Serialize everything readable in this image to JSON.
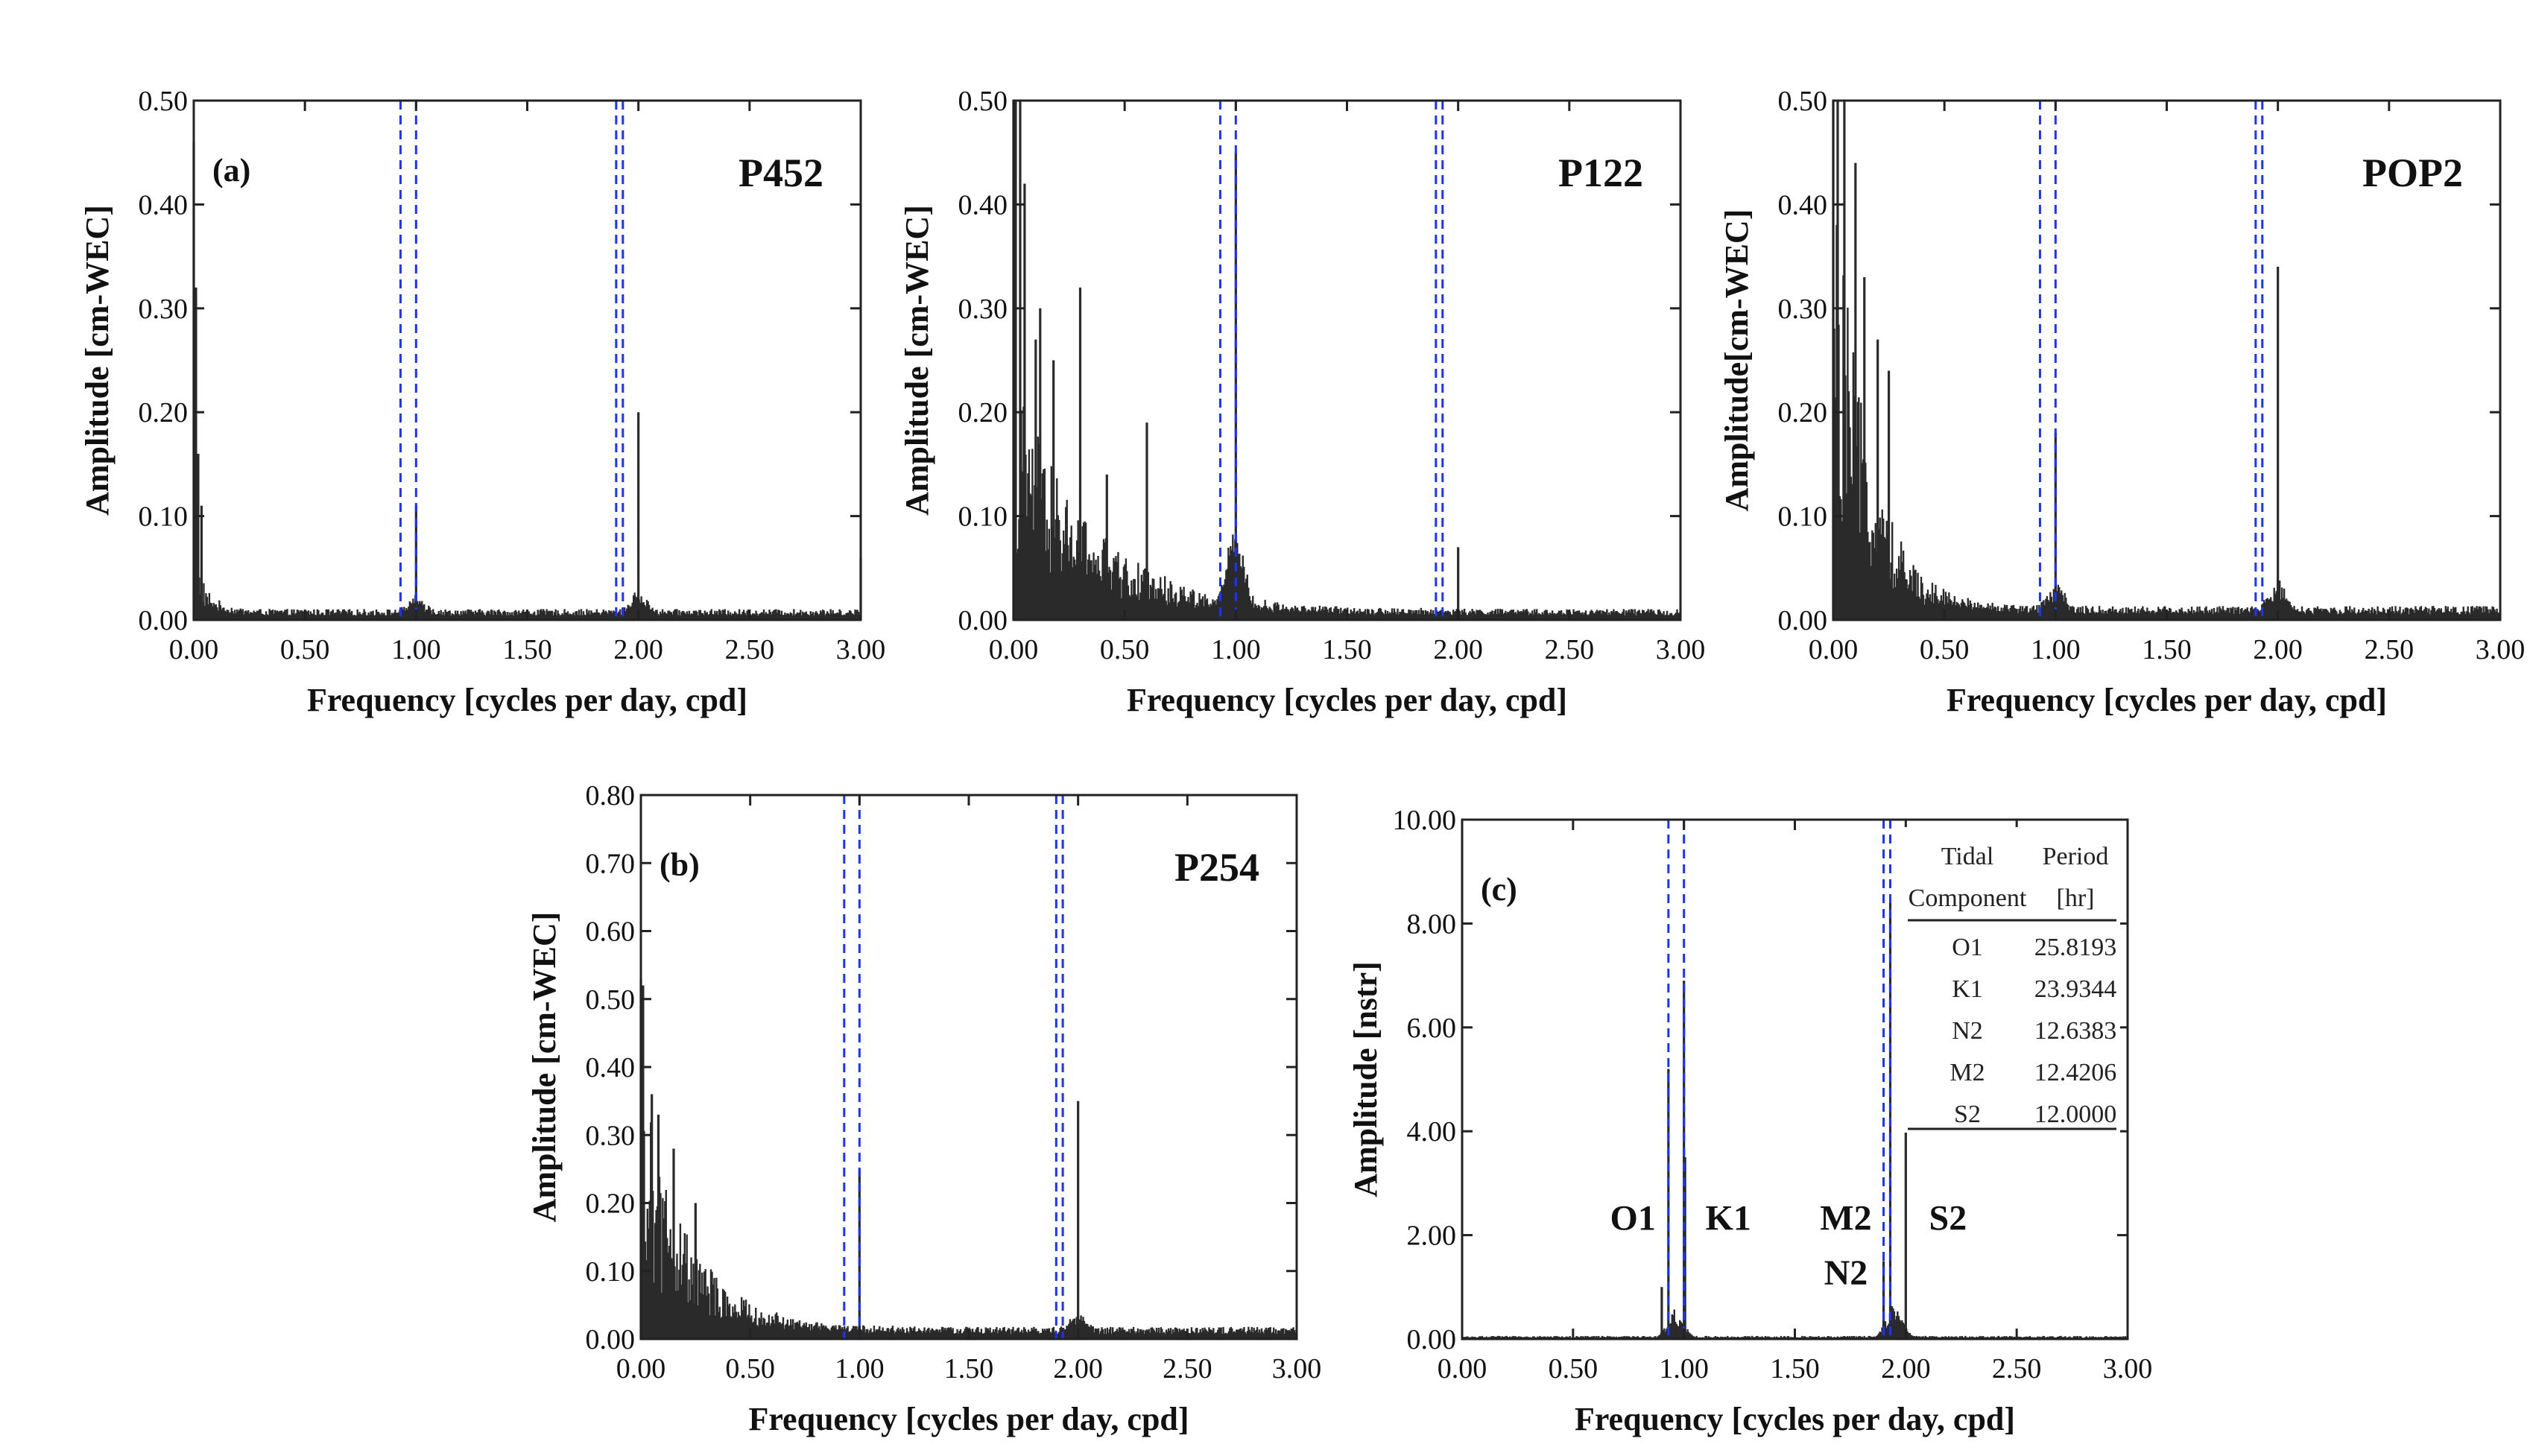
{
  "colors": {
    "bars": "#2a2a2a",
    "frame": "#222222",
    "tidal_lines": "#1a33ff"
  },
  "chart_data": [
    {
      "id": "a",
      "type": "bar",
      "panel_label": "(a)",
      "title": "P452",
      "xlabel": "Frequency [cycles per day, cpd]",
      "ylabel": "Amplitude [cm-WEC]",
      "xlim": [
        0,
        3
      ],
      "ylim": [
        0,
        0.5
      ],
      "xticks": [
        "0.00",
        "0.50",
        "1.00",
        "1.50",
        "2.00",
        "2.50",
        "3.00"
      ],
      "yticks": [
        "0.00",
        "0.10",
        "0.20",
        "0.30",
        "0.40",
        "0.50"
      ],
      "tidal_lines": [
        0.93,
        1.0,
        1.9,
        1.93
      ],
      "spectrum": {
        "decay_amp": 0.04,
        "decay_scale": 0.06,
        "noise_floor": 0.007,
        "low_peaks": [
          [
            0.0,
            0.46
          ],
          [
            0.01,
            0.32
          ],
          [
            0.02,
            0.16
          ],
          [
            0.035,
            0.11
          ]
        ],
        "peaks": [
          [
            1.0,
            0.11
          ],
          [
            2.0,
            0.2
          ],
          [
            3.0,
            0.06
          ]
        ],
        "side_bumps": [
          [
            1.0,
            0.012
          ],
          [
            2.0,
            0.015
          ]
        ]
      }
    },
    {
      "id": "p122",
      "type": "bar",
      "panel_label": "",
      "title": "P122",
      "xlabel": "Frequency [cycles per day, cpd]",
      "ylabel": "Amplitude [cm-WEC]",
      "xlim": [
        0,
        3
      ],
      "ylim": [
        0,
        0.5
      ],
      "xticks": [
        "0.00",
        "0.50",
        "1.00",
        "1.50",
        "2.00",
        "2.50",
        "3.00"
      ],
      "yticks": [
        "0.00",
        "0.10",
        "0.20",
        "0.30",
        "0.40",
        "0.50"
      ],
      "tidal_lines": [
        0.93,
        1.0,
        1.9,
        1.93
      ],
      "spectrum": {
        "decay_amp": 0.16,
        "decay_scale": 0.35,
        "noise_floor": 0.007,
        "low_peaks": [
          [
            0.0,
            0.5
          ],
          [
            0.01,
            0.5
          ],
          [
            0.03,
            0.5
          ],
          [
            0.05,
            0.42
          ],
          [
            0.1,
            0.27
          ],
          [
            0.12,
            0.3
          ],
          [
            0.18,
            0.25
          ],
          [
            0.3,
            0.32
          ],
          [
            0.42,
            0.14
          ],
          [
            0.6,
            0.19
          ]
        ],
        "peaks": [
          [
            1.0,
            0.45
          ],
          [
            2.0,
            0.07
          ]
        ],
        "side_bumps": [
          [
            1.0,
            0.06
          ]
        ]
      }
    },
    {
      "id": "pop2",
      "type": "bar",
      "panel_label": "",
      "title": "POP2",
      "xlabel": "Frequency [cycles per day, cpd]",
      "ylabel": "Amplitude[cm-WEC]",
      "xlim": [
        0,
        3
      ],
      "ylim": [
        0,
        0.5
      ],
      "xticks": [
        "0.00",
        "0.50",
        "1.00",
        "1.50",
        "2.00",
        "2.50",
        "3.00"
      ],
      "yticks": [
        "0.00",
        "0.10",
        "0.20",
        "0.30",
        "0.40",
        "0.50"
      ],
      "tidal_lines": [
        0.93,
        1.0,
        1.9,
        1.93
      ],
      "spectrum": {
        "decay_amp": 0.3,
        "decay_scale": 0.16,
        "noise_floor": 0.009,
        "low_peaks": [
          [
            0.0,
            0.5
          ],
          [
            0.02,
            0.5
          ],
          [
            0.05,
            0.5
          ],
          [
            0.1,
            0.44
          ],
          [
            0.14,
            0.33
          ],
          [
            0.2,
            0.27
          ],
          [
            0.25,
            0.24
          ]
        ],
        "peaks": [
          [
            1.0,
            0.18
          ],
          [
            2.0,
            0.34
          ]
        ],
        "side_bumps": [
          [
            1.0,
            0.02
          ],
          [
            2.0,
            0.025
          ]
        ]
      }
    },
    {
      "id": "b",
      "type": "bar",
      "panel_label": "(b)",
      "title": "P254",
      "xlabel": "Frequency [cycles per day, cpd]",
      "ylabel": "Amplitude [cm-WEC]",
      "xlim": [
        0,
        3
      ],
      "ylim": [
        0,
        0.8
      ],
      "xticks": [
        "0.00",
        "0.50",
        "1.00",
        "1.50",
        "2.00",
        "2.50",
        "3.00"
      ],
      "yticks": [
        "0.00",
        "0.10",
        "0.20",
        "0.30",
        "0.40",
        "0.50",
        "0.60",
        "0.70",
        "0.80"
      ],
      "tidal_lines": [
        0.93,
        1.0,
        1.9,
        1.93
      ],
      "spectrum": {
        "decay_amp": 0.26,
        "decay_scale": 0.22,
        "noise_floor": 0.012,
        "low_peaks": [
          [
            0.0,
            0.53
          ],
          [
            0.01,
            0.52
          ],
          [
            0.05,
            0.36
          ],
          [
            0.08,
            0.33
          ],
          [
            0.15,
            0.28
          ],
          [
            0.25,
            0.2
          ]
        ],
        "peaks": [
          [
            1.0,
            0.25
          ],
          [
            2.0,
            0.35
          ]
        ],
        "side_bumps": [
          [
            2.0,
            0.02
          ]
        ]
      }
    },
    {
      "id": "c",
      "type": "bar",
      "panel_label": "(c)",
      "title": "",
      "xlabel": "Frequency [cycles per day, cpd]",
      "ylabel": "Amplitude [nstr]",
      "xlim": [
        0,
        3
      ],
      "ylim": [
        0,
        10
      ],
      "xticks": [
        "0.00",
        "0.50",
        "1.00",
        "1.50",
        "2.00",
        "2.50",
        "3.00"
      ],
      "yticks": [
        "0.00",
        "2.00",
        "4.00",
        "6.00",
        "8.00",
        "10.00"
      ],
      "tidal_lines": [
        0.93,
        1.0,
        1.9,
        1.93
      ],
      "spectrum": {
        "decay_amp": 0.0,
        "decay_scale": 0.1,
        "noise_floor": 0.04,
        "low_peaks": [],
        "peaks": [
          [
            0.93,
            5.2
          ],
          [
            1.0,
            6.9
          ],
          [
            1.9,
            1.5
          ],
          [
            1.93,
            8.4
          ],
          [
            2.0,
            6.0
          ],
          [
            0.9,
            1.0
          ],
          [
            1.005,
            3.5
          ]
        ],
        "side_bumps": [
          [
            0.96,
            0.4
          ],
          [
            1.95,
            0.5
          ]
        ]
      },
      "annotations": [
        {
          "text": "O1",
          "x": 0.77,
          "y": 2.1
        },
        {
          "text": "K1",
          "x": 1.2,
          "y": 2.1
        },
        {
          "text": "M2",
          "x": 1.73,
          "y": 2.1
        },
        {
          "text": "N2",
          "x": 1.73,
          "y": 1.05
        },
        {
          "text": "S2",
          "x": 2.19,
          "y": 2.1
        }
      ],
      "table": {
        "header": [
          [
            "Tidal",
            "Period"
          ],
          [
            "Component",
            "[hr]"
          ]
        ],
        "rows": [
          [
            "O1",
            "25.8193"
          ],
          [
            "K1",
            "23.9344"
          ],
          [
            "N2",
            "12.6383"
          ],
          [
            "M2",
            "12.4206"
          ],
          [
            "S2",
            "12.0000"
          ]
        ]
      }
    }
  ]
}
